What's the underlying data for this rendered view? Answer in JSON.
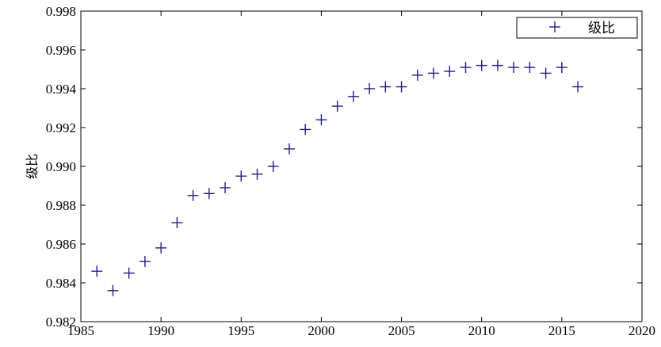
{
  "chart_data": {
    "type": "scatter",
    "title": "",
    "xlabel": "",
    "ylabel": "级比",
    "xlim": [
      1985,
      2020
    ],
    "ylim": [
      0.982,
      0.998
    ],
    "xticks": [
      "1985",
      "1990",
      "1995",
      "2000",
      "2005",
      "2010",
      "2015",
      "2020"
    ],
    "yticks": [
      "0.982",
      "0.984",
      "0.986",
      "0.988",
      "0.990",
      "0.992",
      "0.994",
      "0.996",
      "0.998"
    ],
    "grid": false,
    "legend_position": "top-right",
    "marker": "+",
    "series": [
      {
        "name": "级比",
        "color": "#1f1f8a",
        "x": [
          1986,
          1987,
          1988,
          1989,
          1990,
          1991,
          1992,
          1993,
          1994,
          1995,
          1996,
          1997,
          1998,
          1999,
          2000,
          2001,
          2002,
          2003,
          2004,
          2005,
          2006,
          2007,
          2008,
          2009,
          2010,
          2011,
          2012,
          2013,
          2014,
          2015,
          2016
        ],
        "y": [
          0.9846,
          0.9836,
          0.9845,
          0.9851,
          0.9858,
          0.9871,
          0.9885,
          0.9886,
          0.9889,
          0.9895,
          0.9896,
          0.99,
          0.9909,
          0.9919,
          0.9924,
          0.9931,
          0.9936,
          0.994,
          0.9941,
          0.9941,
          0.9947,
          0.9948,
          0.9949,
          0.9951,
          0.9952,
          0.9952,
          0.9951,
          0.9951,
          0.9948,
          0.9951,
          0.9941
        ]
      }
    ]
  }
}
